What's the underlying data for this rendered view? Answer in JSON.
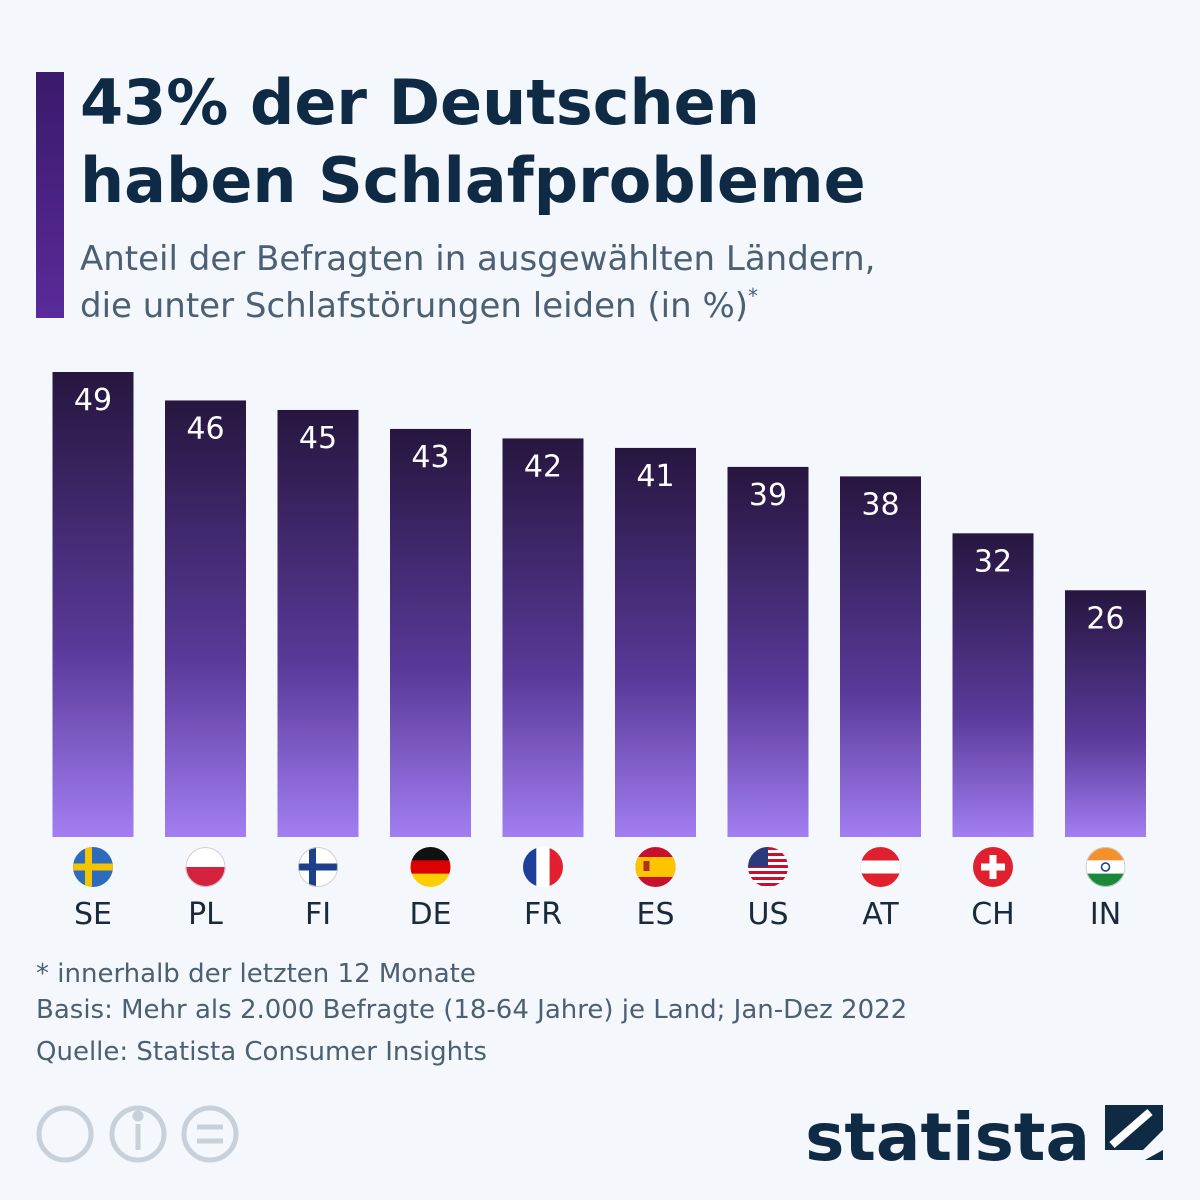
{
  "chart_data": {
    "type": "bar",
    "title": [
      "43% der Deutschen",
      "haben Schlafprobleme"
    ],
    "subtitle": [
      "Anteil der Befragten in ausgewählten Ländern,",
      "die unter Schlafstörungen leiden (in %)"
    ],
    "subtitle_marker": "*",
    "categories": [
      "SE",
      "PL",
      "FI",
      "DE",
      "FR",
      "ES",
      "US",
      "AT",
      "CH",
      "IN"
    ],
    "values": [
      49,
      46,
      45,
      43,
      42,
      41,
      39,
      38,
      32,
      26
    ],
    "footnotes": [
      "* innerhalb der letzten 12 Monate",
      "Basis: Mehr als 2.000 Befragte (18-64 Jahre) je Land; Jan-Dez 2022",
      "Quelle: Statista Consumer Insights"
    ],
    "brand": "statista"
  }
}
